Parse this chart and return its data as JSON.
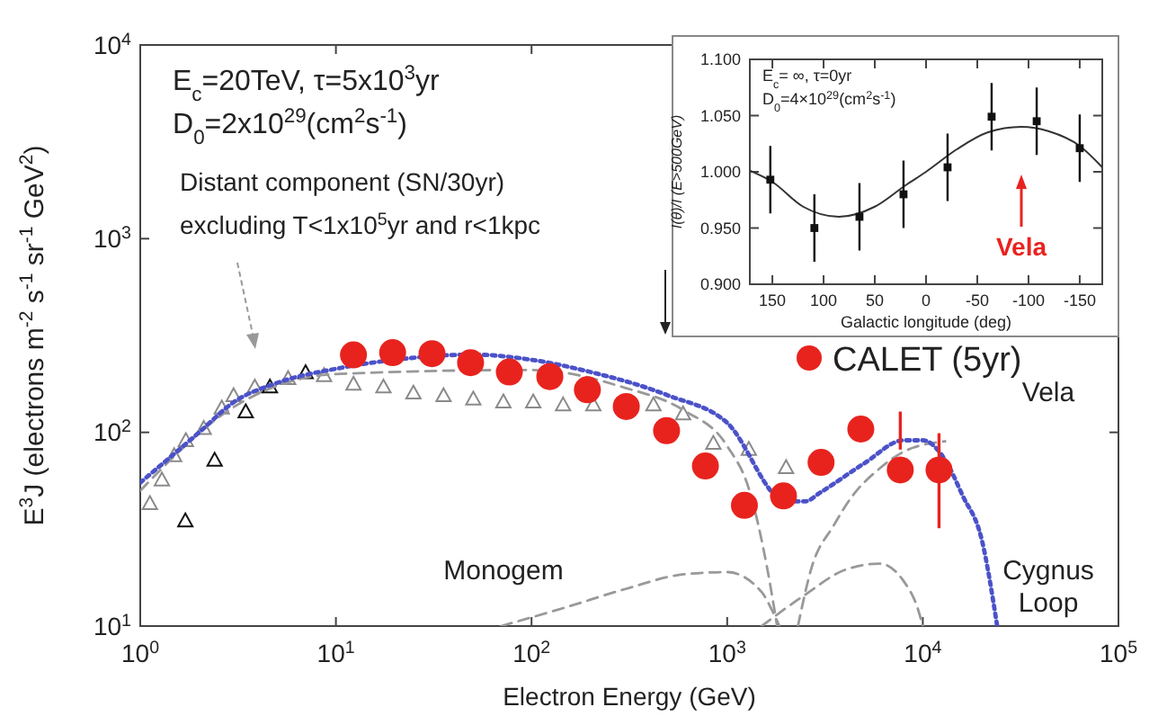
{
  "chart_data": [
    {
      "type": "line",
      "xlabel": "Electron Energy (GeV)",
      "ylabel": "E$^{3}$J (electrons m$^{-2}$ s$^{-1}$ sr$^{-1}$ GeV$^{2}$)",
      "log": "xy",
      "grid": false,
      "legend": "right",
      "xlim": [
        1,
        100000
      ],
      "ylim": [
        10,
        10000
      ],
      "xticks": [
        {
          "value": 1,
          "label": "10$^{0}$"
        },
        {
          "value": 10,
          "label": "10$^{1}$"
        },
        {
          "value": 100,
          "label": "10$^{2}$"
        },
        {
          "value": 1000,
          "label": "10$^{3}$"
        },
        {
          "value": 10000,
          "label": "10$^{4}$"
        },
        {
          "value": 100000,
          "label": "10$^{5}$"
        }
      ],
      "yticks": [
        {
          "value": 10,
          "label": "10$^{1}$"
        },
        {
          "value": 100,
          "label": "10$^{2}$"
        },
        {
          "value": 1000,
          "label": "10$^{3}$"
        },
        {
          "value": 10000,
          "label": "10$^{4}$"
        }
      ],
      "annotations": [
        "E$_{c}$=20TeV, τ=5x10$^{3}$yr",
        "D$_{0}$=2x10$^{29}$(cm$^{2}$s$^{-1}$)",
        "Distant component (SN/30yr)",
        "excluding T<1x10$^{5}$yr and r<1kpc",
        "Monogem",
        "Vela",
        "Cygnus",
        "Loop"
      ],
      "series": [
        {
          "type": "scatter",
          "color": "#8a8a8a",
          "marker": "triangle",
          "x": [
            1.12,
            1.29,
            1.49,
            1.71,
            2.11,
            2.61,
            3.0,
            3.85,
            5.7,
            8.7,
            12.3,
            17.5,
            24.9,
            35.5,
            50.4,
            71.8,
            102,
            145,
            207,
            420,
            595,
            850,
            1290,
            2000
          ],
          "values": [
            43,
            57,
            76,
            91,
            105,
            134,
            155,
            172,
            190,
            197,
            178,
            172,
            160,
            155,
            149,
            144,
            144,
            139,
            139,
            139,
            125,
            88,
            82,
            66
          ]
        },
        {
          "type": "scatter",
          "color": "#111111",
          "marker": "triangle",
          "x": [
            1.7,
            2.4,
            3.46,
            4.6,
            7.0
          ],
          "values": [
            35,
            72,
            128,
            172,
            204
          ]
        },
        {
          "color": "#999999",
          "line_style": "dashed",
          "x": [
            1,
            3,
            10,
            100,
            300,
            600,
            1000,
            1300,
            1600,
            1800
          ],
          "values": [
            50,
            135,
            200,
            210,
            170,
            130,
            85,
            50,
            20,
            10
          ]
        },
        {
          "color": "#999999",
          "line_style": "dashed",
          "x": [
            70,
            150,
            300,
            600,
            1000,
            1500,
            1700,
            1850
          ],
          "values": [
            10,
            12.5,
            15.5,
            18.5,
            19,
            15,
            12,
            10
          ]
        },
        {
          "color": "#999999",
          "line_style": "dashed",
          "x": [
            2300,
            2700,
            3500,
            4300,
            6000,
            8100,
            13000
          ],
          "values": [
            10,
            20,
            33,
            46,
            65,
            80,
            90
          ]
        },
        {
          "color": "#999999",
          "line_style": "dashed",
          "x": [
            1500,
            2500,
            4000,
            6000,
            8000,
            9500,
            10000
          ],
          "values": [
            10,
            14.5,
            19.5,
            21,
            17,
            12,
            10
          ]
        },
        {
          "color": "#4b52c8",
          "line_style": "dotted",
          "x": [
            1,
            2,
            3,
            5,
            10,
            20,
            50,
            100,
            200,
            500,
            1000,
            2000,
            2500,
            3000,
            5000,
            8000,
            10000,
            13000,
            16000,
            20000,
            24000
          ],
          "values": [
            55,
            100,
            143,
            180,
            213,
            237,
            252,
            237,
            205,
            155,
            112,
            44,
            44,
            49,
            69,
            91,
            91,
            72,
            47,
            28,
            10
          ]
        },
        {
          "type": "scatter",
          "name": "CALET (5yr)",
          "color": "#e8231e",
          "marker": "circle",
          "x": [
            12.3,
            19.5,
            31,
            48.8,
            77,
            124,
            193,
            305,
            490,
            774,
            1225,
            1940,
            3020,
            4820,
            7670,
            12100
          ],
          "values": [
            251,
            258,
            255,
            229,
            205,
            194,
            166,
            136,
            102,
            67,
            42,
            47,
            70,
            104,
            64,
            64
          ],
          "errors": [
            null,
            null,
            null,
            null,
            null,
            null,
            null,
            null,
            null,
            null,
            null,
            null,
            null,
            null,
            [
              81.5,
              128
            ],
            [
              32,
              99
            ]
          ]
        }
      ]
    },
    {
      "type": "scatter",
      "xlabel": "Galactic longitude (deg)",
      "ylabel": "I(θ)/I (E>500GeV)",
      "grid": false,
      "xlim": [
        172,
        -172
      ],
      "ylim": [
        0.9,
        1.1
      ],
      "xticks": [
        150,
        100,
        50,
        0,
        -50,
        -100,
        -150
      ],
      "yticks": [
        {
          "value": 0.9,
          "label": "0.900"
        },
        {
          "value": 0.95,
          "label": "0.950"
        },
        {
          "value": 1.0,
          "label": "1.000"
        },
        {
          "value": 1.05,
          "label": "1.050"
        },
        {
          "value": 1.1,
          "label": "1.100"
        }
      ],
      "annotations": [
        "E$_{c}$= ∞, τ=0yr",
        "D$_{0}$=4×10$^{29}$(cm$^{2}$s$^{-1}$)",
        "Vela"
      ],
      "series": [
        {
          "type": "line",
          "color": "#333333",
          "line_style": "solid",
          "x": [
            172,
            150,
            120,
            85,
            50,
            20,
            0,
            -30,
            -60,
            -93,
            -120,
            -150,
            -172
          ],
          "values": [
            1.001,
            0.991,
            0.969,
            0.96,
            0.969,
            0.988,
            1.0,
            1.02,
            1.035,
            1.04,
            1.036,
            1.023,
            1.004
          ]
        },
        {
          "color": "#111111",
          "marker": "square",
          "x": [
            152,
            109,
            65,
            22,
            -21,
            -64,
            -108,
            -150
          ],
          "values": [
            0.993,
            0.95,
            0.96,
            0.98,
            1.004,
            1.049,
            1.045,
            1.021
          ],
          "errors": [
            0.03,
            0.03,
            0.03,
            0.03,
            0.03,
            0.03,
            0.03,
            0.03
          ]
        }
      ]
    }
  ]
}
